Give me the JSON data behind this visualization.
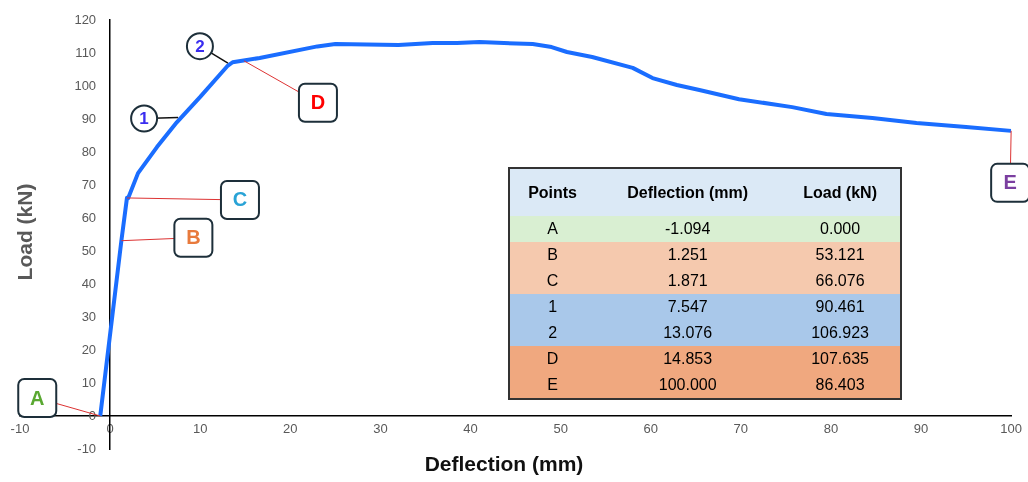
{
  "chart_data": {
    "type": "line",
    "xlabel": "Deflection (mm)",
    "ylabel": "Load (kN)",
    "xlim": [
      -10,
      100
    ],
    "xticks": [
      -10,
      0,
      10,
      20,
      30,
      40,
      50,
      60,
      70,
      80,
      90,
      100
    ],
    "ylim": [
      -10,
      120
    ],
    "yticks": [
      -10,
      0,
      10,
      20,
      30,
      40,
      50,
      60,
      70,
      80,
      90,
      100,
      110,
      120
    ],
    "grid": false,
    "legend": false,
    "marker": "none",
    "line_style": "solid",
    "series": [
      {
        "color": "#1a6dff",
        "x": [
          -1.094,
          1.251,
          1.871,
          2,
          3.1,
          5.2,
          7.4,
          10,
          13,
          13.6,
          16.6,
          23,
          25,
          32,
          35.8,
          38.5,
          41,
          46.9,
          49,
          50.7,
          53.5,
          58,
          60.2,
          62.9,
          65.4,
          69.8,
          75.7,
          79.5,
          84.6,
          89.5,
          95,
          100
        ],
        "values": [
          0,
          53.1,
          66.1,
          66,
          73.6,
          81.5,
          89,
          96.7,
          106,
          107.2,
          108.5,
          112,
          112.7,
          112.4,
          113,
          113,
          113.3,
          112.7,
          111.8,
          110.3,
          108.8,
          105.5,
          102.4,
          100.3,
          98.8,
          96,
          93.6,
          91.5,
          90.3,
          88.8,
          87.6,
          86.4
        ]
      }
    ],
    "annotations": [
      "Points",
      "Deflection (mm)",
      "Load (kN)",
      "A",
      "-1.094",
      "0.000",
      "B",
      "1.251",
      "53.121",
      "C",
      "1.871",
      "66.076",
      "1",
      "7.547",
      "90.461",
      "2",
      "13.076",
      "106.923",
      "D",
      "14.853",
      "107.635",
      "E",
      "100.000",
      "86.403",
      {
        "text": "A",
        "x": -1.094,
        "y": 0
      },
      {
        "text": "B",
        "x": 1.251,
        "y": 53.121
      },
      {
        "text": "C",
        "x": 1.871,
        "y": 66.076
      },
      {
        "text": "1",
        "x": 7.547,
        "y": 90.461
      },
      {
        "text": "2",
        "x": 13.076,
        "y": 106.923
      },
      {
        "text": "D",
        "x": 14.853,
        "y": 107.635
      },
      {
        "text": "E",
        "x": 100,
        "y": 86.403
      }
    ]
  }
}
